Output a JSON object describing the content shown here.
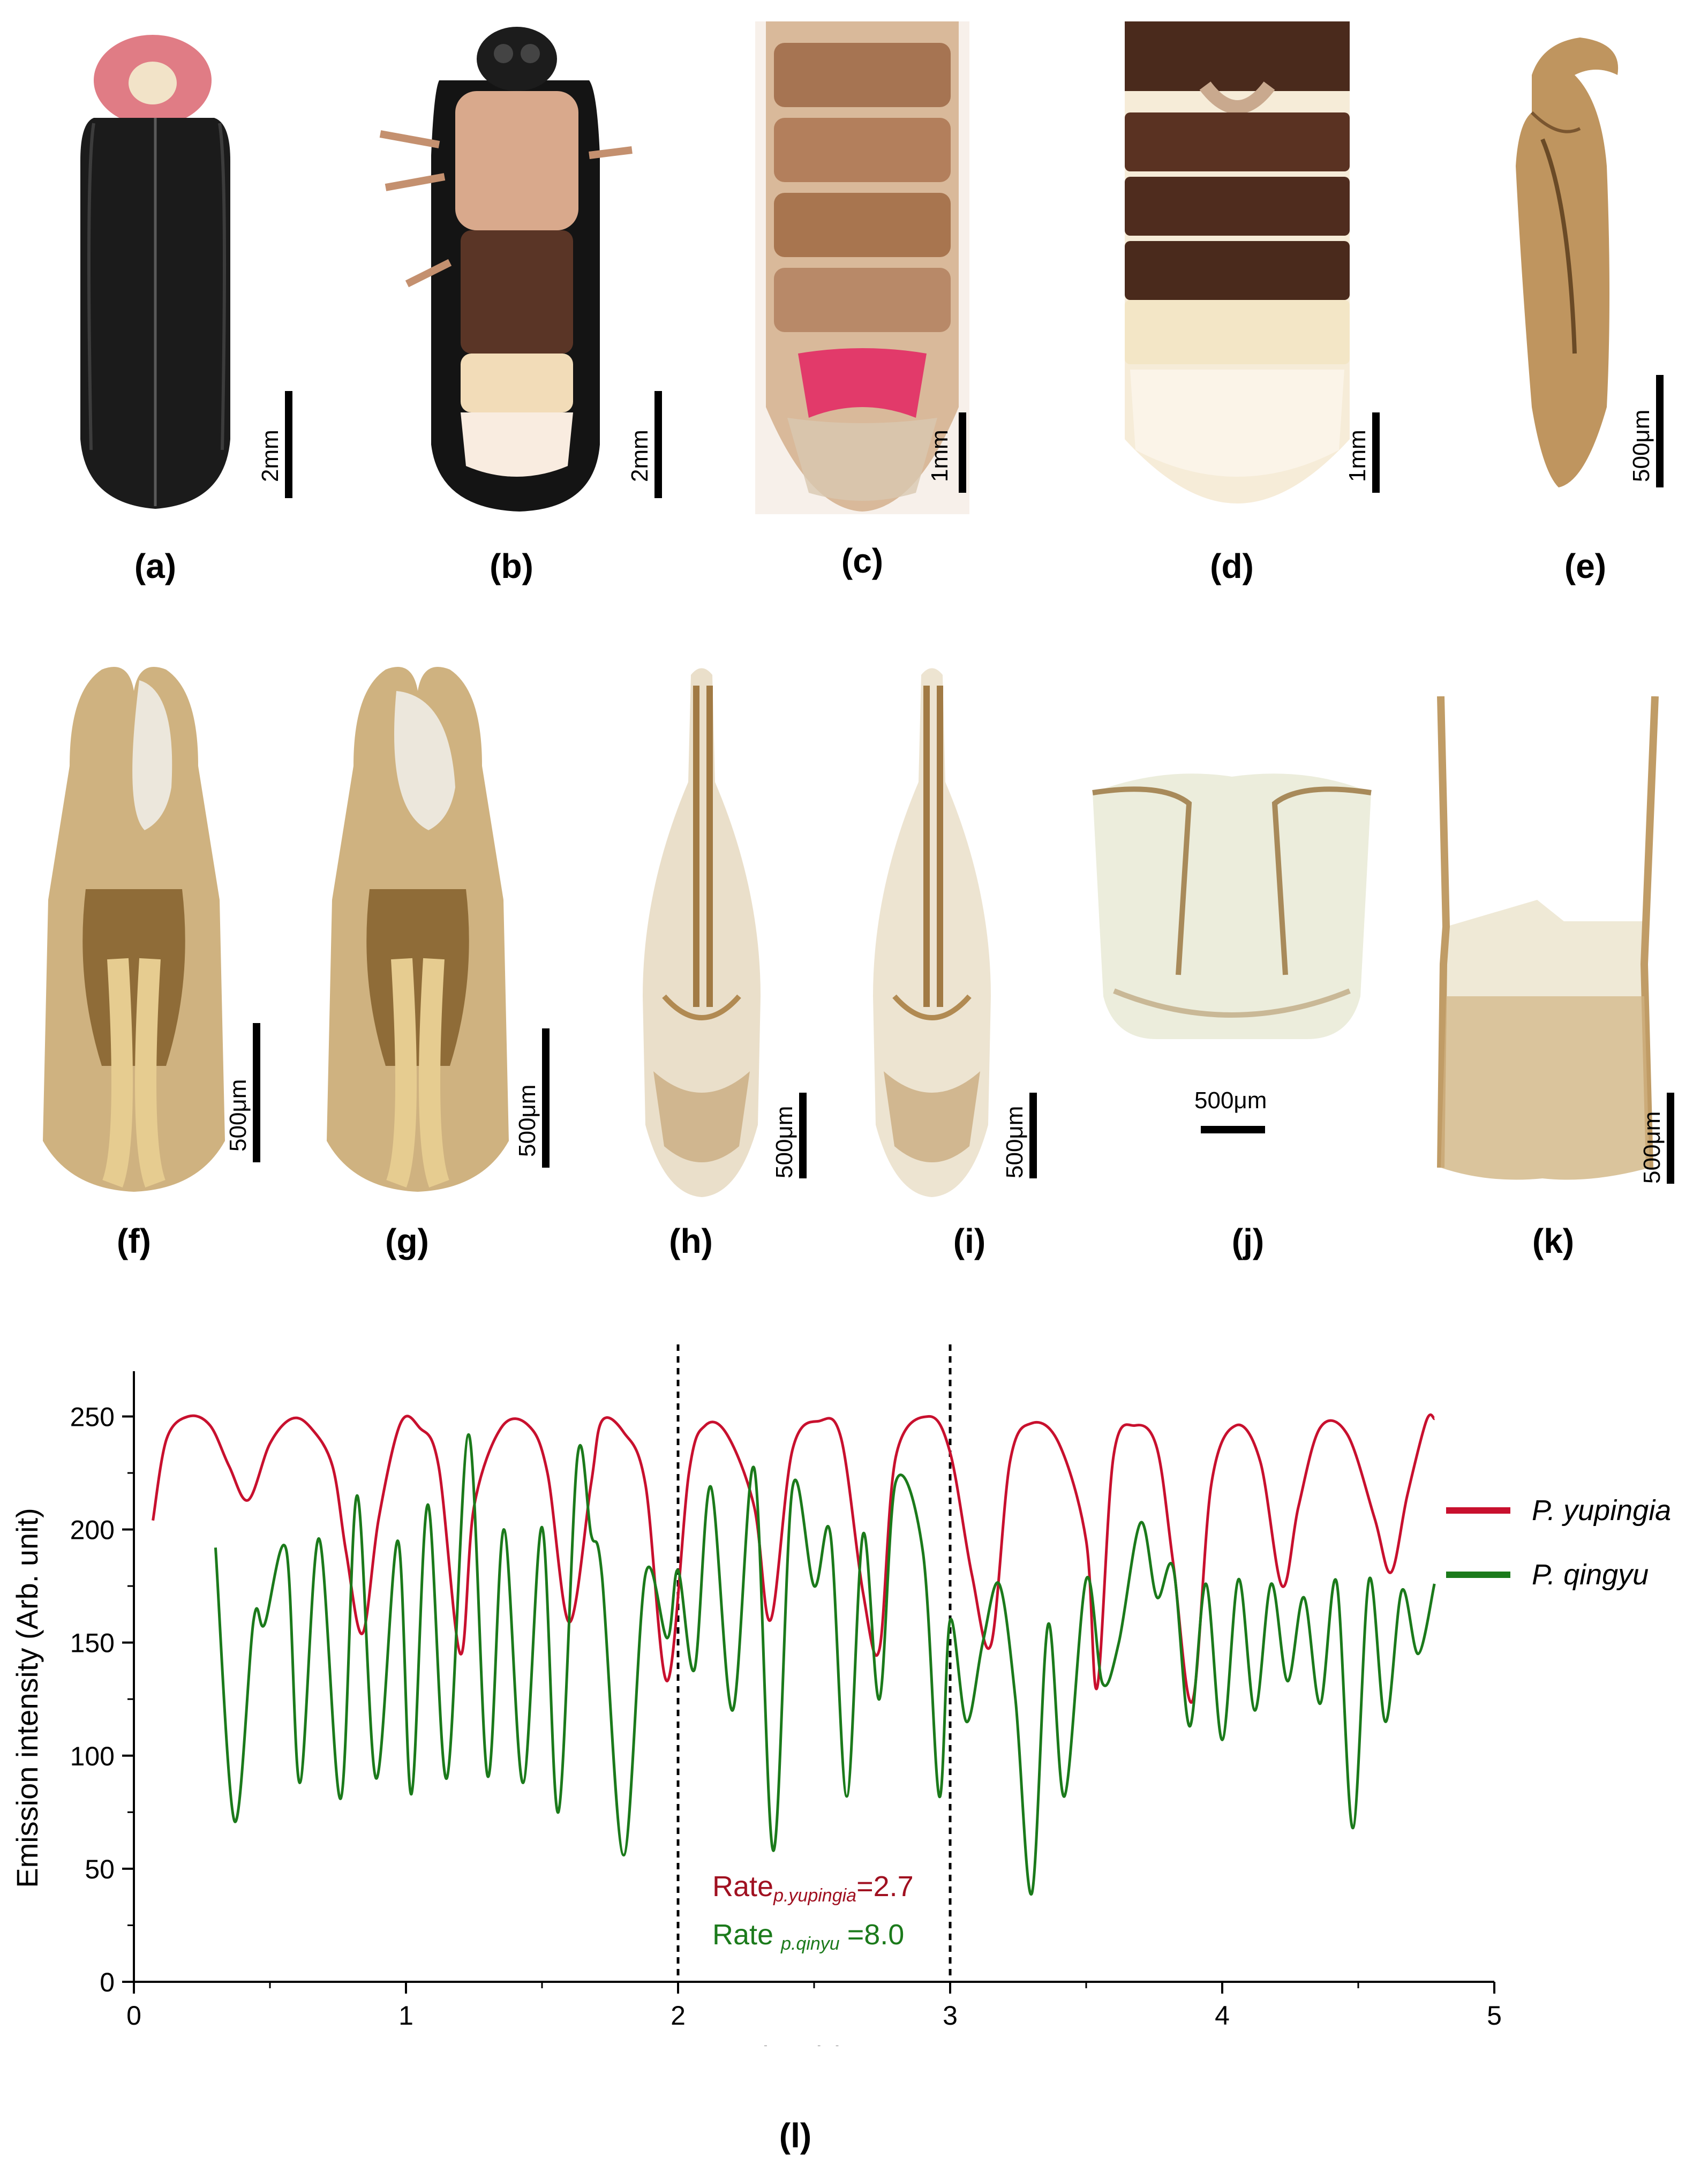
{
  "panels": {
    "a": {
      "label": "(a)",
      "scale": "2mm"
    },
    "b": {
      "label": "(b)",
      "scale": "2mm"
    },
    "c": {
      "label": "(c)",
      "scale": "1mm"
    },
    "d": {
      "label": "(d)",
      "scale": "1mm"
    },
    "e": {
      "label": "(e)",
      "scale": "500μm"
    },
    "f": {
      "label": "(f)",
      "scale": "500μm"
    },
    "g": {
      "label": "(g)",
      "scale": "500μm"
    },
    "h": {
      "label": "(h)",
      "scale": "500μm"
    },
    "i": {
      "label": "(i)",
      "scale": "500μm"
    },
    "j": {
      "label": "(j)",
      "scale": "500μm"
    },
    "k": {
      "label": "(k)",
      "scale": "500μm"
    },
    "l": {
      "label": "(l)"
    }
  },
  "colors": {
    "red_series": "#c8102e",
    "green_series": "#1b7a1b",
    "annotation_red": "#a01020",
    "annotation_green": "#1b7a1b"
  },
  "annotations": {
    "rate_red_prefix": "Rate",
    "rate_red_sub": "p.yupingia",
    "rate_red_value": "=2.7",
    "rate_green_prefix": "Rate",
    "rate_green_sub": "p.qinyu",
    "rate_green_value": "=8.0"
  },
  "chart_data": {
    "type": "line",
    "xlabel": "Time(s)",
    "ylabel": "Emission intensity (Arb. unit)",
    "xlim": [
      0,
      5
    ],
    "ylim": [
      0,
      270
    ],
    "xticks": [
      0,
      1,
      2,
      3,
      4,
      5
    ],
    "yticks": [
      0,
      50,
      100,
      150,
      200,
      250
    ],
    "vlines": [
      2,
      3
    ],
    "legend_position": "right",
    "series": [
      {
        "name": "P. yupingia",
        "color": "#c8102e",
        "x": [
          0.07,
          0.12,
          0.2,
          0.28,
          0.35,
          0.42,
          0.5,
          0.58,
          0.65,
          0.73,
          0.78,
          0.84,
          0.9,
          0.98,
          1.05,
          1.12,
          1.2,
          1.25,
          1.35,
          1.45,
          1.52,
          1.6,
          1.68,
          1.72,
          1.8,
          1.88,
          1.96,
          2.04,
          2.1,
          2.18,
          2.28,
          2.34,
          2.42,
          2.52,
          2.6,
          2.68,
          2.74,
          2.8,
          2.92,
          3.0,
          3.08,
          3.15,
          3.22,
          3.3,
          3.4,
          3.5,
          3.54,
          3.6,
          3.68,
          3.76,
          3.82,
          3.89,
          3.96,
          4.05,
          4.14,
          4.22,
          4.28,
          4.36,
          4.46,
          4.56,
          4.62,
          4.68,
          4.75,
          4.78
        ],
        "values": [
          204,
          240,
          250,
          246,
          228,
          213,
          238,
          249,
          245,
          228,
          190,
          154,
          205,
          247,
          245,
          228,
          145,
          210,
          245,
          246,
          225,
          159,
          220,
          248,
          243,
          220,
          133,
          225,
          246,
          242,
          210,
          160,
          235,
          248,
          240,
          172,
          147,
          232,
          250,
          234,
          180,
          149,
          230,
          247,
          238,
          195,
          130,
          232,
          246,
          236,
          185,
          124,
          220,
          246,
          230,
          175,
          210,
          245,
          242,
          205,
          181,
          215,
          248,
          249
        ]
      },
      {
        "name": "P. qingyu",
        "color": "#1b7a1b",
        "x": [
          0.3,
          0.37,
          0.44,
          0.48,
          0.56,
          0.61,
          0.68,
          0.76,
          0.82,
          0.89,
          0.97,
          1.02,
          1.08,
          1.15,
          1.23,
          1.3,
          1.36,
          1.43,
          1.5,
          1.56,
          1.63,
          1.68,
          1.72,
          1.8,
          1.88,
          1.96,
          2.0,
          2.06,
          2.12,
          2.2,
          2.28,
          2.35,
          2.42,
          2.5,
          2.56,
          2.62,
          2.68,
          2.74,
          2.8,
          2.9,
          2.96,
          3.0,
          3.06,
          3.12,
          3.18,
          3.24,
          3.3,
          3.36,
          3.42,
          3.5,
          3.56,
          3.62,
          3.7,
          3.76,
          3.82,
          3.88,
          3.94,
          4.0,
          4.06,
          4.12,
          4.18,
          4.24,
          4.3,
          4.36,
          4.42,
          4.48,
          4.54,
          4.6,
          4.66,
          4.72,
          4.78
        ],
        "values": [
          192,
          71,
          160,
          158,
          191,
          88,
          196,
          81,
          215,
          90,
          195,
          83,
          211,
          90,
          242,
          91,
          200,
          88,
          201,
          75,
          232,
          198,
          180,
          56,
          180,
          152,
          182,
          138,
          219,
          120,
          227,
          58,
          218,
          175,
          198,
          82,
          198,
          125,
          221,
          190,
          82,
          160,
          115,
          150,
          176,
          125,
          39,
          158,
          82,
          178,
          132,
          150,
          203,
          170,
          183,
          113,
          176,
          107,
          178,
          120,
          176,
          133,
          170,
          123,
          177,
          68,
          178,
          115,
          173,
          145,
          176
        ]
      }
    ]
  }
}
